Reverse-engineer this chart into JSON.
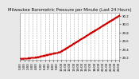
{
  "title": "Milwaukee Barometric Pressure per Minute (Last 24 Hours)",
  "title_fontsize": 3.8,
  "background_color": "#e8e8e8",
  "plot_bg_color": "#ffffff",
  "line_color": "#cc0000",
  "marker_size": 0.8,
  "grid_color": "#aaaaaa",
  "grid_style": "--",
  "tick_fontsize": 2.8,
  "ylim": [
    29.15,
    30.28
  ],
  "yticks": [
    29.2,
    29.4,
    29.6,
    29.8,
    30.0,
    30.2
  ],
  "ytick_labels": [
    "29.2",
    "29.4",
    "29.6",
    "29.8",
    "30.0",
    "30.2"
  ],
  "x_count": 1440,
  "pressure_start": 29.18,
  "pressure_end": 30.22,
  "noise_seed": 42,
  "x_tick_positions": [
    0,
    60,
    120,
    180,
    240,
    300,
    360,
    420,
    480,
    540,
    600,
    660,
    720,
    780,
    840,
    900,
    960,
    1020,
    1080,
    1140,
    1200,
    1260,
    1320,
    1380,
    1439
  ],
  "x_tick_labels": [
    "0:00",
    "1:00",
    "2:00",
    "3:00",
    "4:00",
    "5:00",
    "6:00",
    "7:00",
    "8:00",
    "9:00",
    "10:00",
    "11:00",
    "12:00",
    "13:00",
    "14:00",
    "15:00",
    "16:00",
    "17:00",
    "18:00",
    "19:00",
    "20:00",
    "21:00",
    "22:00",
    "23:00",
    "24:00"
  ]
}
